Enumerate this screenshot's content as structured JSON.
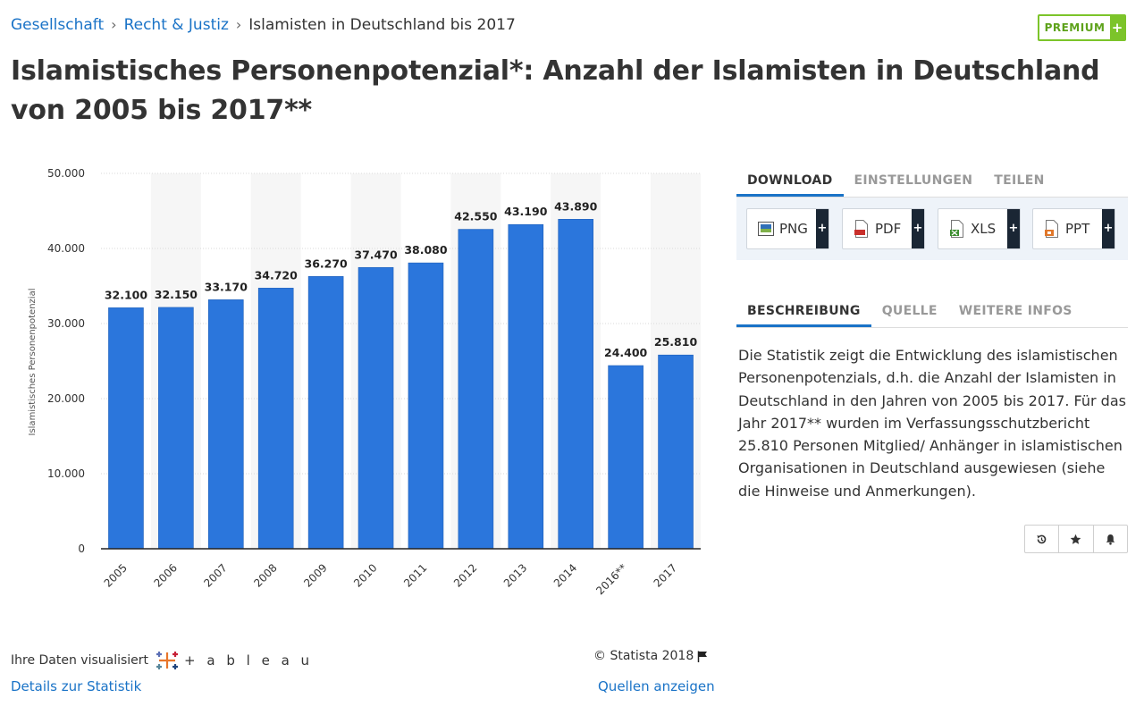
{
  "breadcrumb": {
    "items": [
      "Gesellschaft",
      "Recht & Justiz",
      "Islamisten in Deutschland bis 2017"
    ],
    "separator": "›"
  },
  "premium": {
    "label": "PREMIUM",
    "plus": "+"
  },
  "page_title": "Islamistisches Personenpotenzial*: Anzahl der Islamisten in Deutschland von 2005 bis 2017**",
  "chart_data": {
    "type": "bar",
    "categories": [
      "2005",
      "2006",
      "2007",
      "2008",
      "2009",
      "2010",
      "2011",
      "2012",
      "2013",
      "2014",
      "2016**",
      "2017"
    ],
    "values": [
      32100,
      32150,
      33170,
      34720,
      36270,
      37470,
      38080,
      42550,
      43190,
      43890,
      24400,
      25810
    ],
    "value_labels": [
      "32.100",
      "32.150",
      "33.170",
      "34.720",
      "36.270",
      "37.470",
      "38.080",
      "42.550",
      "43.190",
      "43.890",
      "24.400",
      "25.810"
    ],
    "ylabel": "Islamistisches Personenpotenzial",
    "xlabel": "",
    "ylim": [
      0,
      50000
    ],
    "yticks": [
      0,
      10000,
      20000,
      30000,
      40000,
      50000
    ],
    "ytick_labels": [
      "0",
      "10.000",
      "20.000",
      "30.000",
      "40.000",
      "50.000"
    ],
    "grid": true,
    "bar_color": "#2b76dc"
  },
  "footer": {
    "credit_text": "Ihre Daten visualisiert",
    "logo_word": "+ a b l e a u",
    "copyright": "© Statista 2018",
    "details_link": "Details zur Statistik",
    "sources_link": "Quellen anzeigen"
  },
  "download_tabs": [
    "DOWNLOAD",
    "EINSTELLUNGEN",
    "TEILEN"
  ],
  "download_buttons": [
    {
      "label": "PNG",
      "icon": "png-file-icon",
      "color": "#2f6fb8"
    },
    {
      "label": "PDF",
      "icon": "pdf-file-icon",
      "color": "#c9302c"
    },
    {
      "label": "XLS",
      "icon": "xls-file-icon",
      "color": "#3c8d2f"
    },
    {
      "label": "PPT",
      "icon": "ppt-file-icon",
      "color": "#e0772a"
    }
  ],
  "download_plus": "+",
  "description_tabs": [
    "BESCHREIBUNG",
    "QUELLE",
    "WEITERE INFOS"
  ],
  "description": "Die Statistik zeigt die Entwicklung des islamistischen Personenpotenzials, d.h. die Anzahl der Islamisten in Deutschland in den Jahren von 2005 bis 2017. Für das Jahr 2017** wurden im Verfassungsschutzbericht 25.810 Personen Mitglied/ Anhänger in islamistischen Organisationen in Deutschland ausgewiesen (siehe die Hinweise und Anmerkungen).",
  "actions": [
    "history-icon",
    "star-icon",
    "bell-icon"
  ],
  "colors": {
    "accent": "#1a73c7",
    "premium": "#7cc42a",
    "bar": "#2b76dc"
  }
}
